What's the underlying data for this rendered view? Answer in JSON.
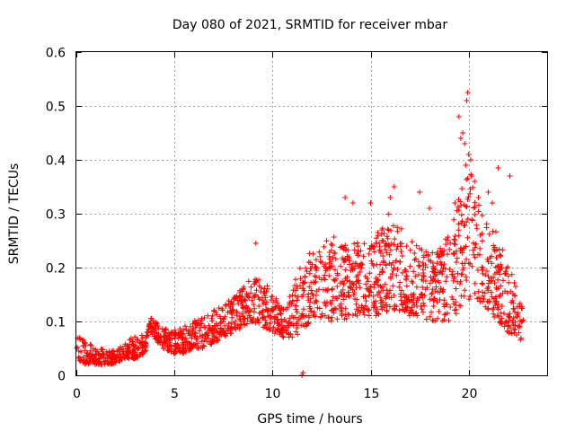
{
  "chart_data": {
    "type": "scatter",
    "title": "Day 080 of 2021, SRMTID for receiver mbar",
    "xlabel": "GPS time / hours",
    "ylabel": "SRMTID / TECUs",
    "xlim": [
      0,
      24
    ],
    "ylim": [
      0,
      0.6
    ],
    "xticks": [
      0,
      5,
      10,
      15,
      20
    ],
    "xtick_labels": [
      "0",
      "5",
      "10",
      "15",
      "20"
    ],
    "yticks": [
      0,
      0.1,
      0.2,
      0.3,
      0.4,
      0.5,
      0.6
    ],
    "ytick_labels": [
      "0",
      "0.1",
      "0.2",
      "0.3",
      "0.4",
      "0.5",
      "0.6"
    ],
    "grid": true,
    "marker": "plus",
    "color": "#ff0000",
    "envelope": {
      "x": [
        0,
        0.5,
        1,
        1.5,
        2,
        2.5,
        3,
        3.5,
        3.8,
        4.3,
        5,
        5.5,
        6,
        6.5,
        7,
        7.5,
        8,
        8.5,
        9,
        9.5,
        10,
        10.5,
        11,
        11.5,
        12,
        12.5,
        13,
        13.5,
        14,
        14.5,
        15,
        15.5,
        16,
        16.5,
        17,
        17.5,
        18,
        18.5,
        19,
        19.5,
        20,
        20.5,
        21,
        21.5,
        22,
        22.5,
        22.8
      ],
      "lower": [
        0.03,
        0.02,
        0.02,
        0.02,
        0.02,
        0.03,
        0.03,
        0.04,
        0.08,
        0.05,
        0.04,
        0.04,
        0.05,
        0.05,
        0.06,
        0.07,
        0.08,
        0.09,
        0.1,
        0.09,
        0.08,
        0.07,
        0.07,
        0.08,
        0.1,
        0.1,
        0.1,
        0.1,
        0.11,
        0.11,
        0.11,
        0.11,
        0.12,
        0.12,
        0.11,
        0.11,
        0.1,
        0.1,
        0.1,
        0.12,
        0.14,
        0.14,
        0.12,
        0.1,
        0.08,
        0.07,
        0.06
      ],
      "upper": [
        0.08,
        0.06,
        0.05,
        0.05,
        0.05,
        0.06,
        0.08,
        0.07,
        0.11,
        0.09,
        0.09,
        0.09,
        0.1,
        0.11,
        0.12,
        0.14,
        0.15,
        0.17,
        0.19,
        0.18,
        0.15,
        0.14,
        0.17,
        0.21,
        0.23,
        0.25,
        0.25,
        0.25,
        0.25,
        0.26,
        0.26,
        0.28,
        0.3,
        0.28,
        0.26,
        0.25,
        0.23,
        0.24,
        0.28,
        0.34,
        0.4,
        0.35,
        0.3,
        0.27,
        0.22,
        0.16,
        0.12
      ]
    },
    "highlights": [
      {
        "x": 19.95,
        "y": 0.525
      },
      {
        "x": 19.9,
        "y": 0.51
      },
      {
        "x": 19.5,
        "y": 0.48
      },
      {
        "x": 19.7,
        "y": 0.45
      },
      {
        "x": 19.8,
        "y": 0.43
      },
      {
        "x": 19.6,
        "y": 0.44
      },
      {
        "x": 20.0,
        "y": 0.41
      },
      {
        "x": 20.1,
        "y": 0.4
      },
      {
        "x": 19.85,
        "y": 0.39
      },
      {
        "x": 21.5,
        "y": 0.385
      },
      {
        "x": 22.1,
        "y": 0.37
      },
      {
        "x": 20.3,
        "y": 0.36
      },
      {
        "x": 21.0,
        "y": 0.34
      },
      {
        "x": 20.5,
        "y": 0.33
      },
      {
        "x": 21.2,
        "y": 0.32
      },
      {
        "x": 16.2,
        "y": 0.35
      },
      {
        "x": 17.5,
        "y": 0.34
      },
      {
        "x": 15.0,
        "y": 0.32
      },
      {
        "x": 16.0,
        "y": 0.33
      },
      {
        "x": 18.0,
        "y": 0.31
      },
      {
        "x": 19.3,
        "y": 0.32
      },
      {
        "x": 13.7,
        "y": 0.33
      },
      {
        "x": 14.1,
        "y": 0.32
      },
      {
        "x": 9.15,
        "y": 0.245
      },
      {
        "x": 11.5,
        "y": 0.0
      },
      {
        "x": 11.55,
        "y": 0.005
      }
    ],
    "n_points": 1800
  }
}
